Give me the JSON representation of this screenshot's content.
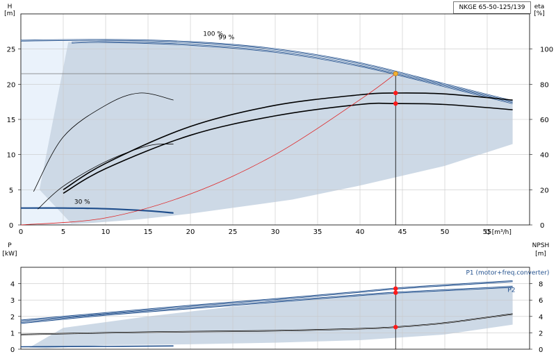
{
  "model": "NKGE 65-50-125/139",
  "chart_data": [
    {
      "type": "line",
      "panel": "upper",
      "xlabel": "Q [m³/h]",
      "ylabel_left": "H",
      "ylabel_left_unit": "[m]",
      "ylabel_right": "eta",
      "ylabel_right_unit": "[%]",
      "xlim": [
        0,
        60
      ],
      "ylim_left": [
        0,
        30
      ],
      "ylim_right": [
        0,
        120
      ],
      "x_ticks": [
        0,
        5,
        10,
        15,
        20,
        25,
        30,
        35,
        40,
        45,
        50,
        55
      ],
      "y_ticks_left": [
        0,
        5,
        10,
        15,
        20,
        25
      ],
      "y_ticks_right": [
        0,
        20,
        40,
        60,
        80,
        100
      ],
      "grid": true,
      "annotations": [
        "100 %",
        "99 %",
        "30 %"
      ],
      "operating_point": {
        "q": 44.2,
        "h": 21.5,
        "eta": 75,
        "eta_alt": 69
      },
      "series": [
        {
          "name": "100 %",
          "axis": "left",
          "color": "#1f4e8c",
          "x": [
            0,
            10,
            20,
            30,
            40,
            50,
            58
          ],
          "y": [
            26.2,
            26.3,
            26.0,
            25.0,
            23.0,
            20.0,
            17.6
          ]
        },
        {
          "name": "99 %",
          "axis": "left",
          "color": "#1f4e8c",
          "x": [
            6,
            10,
            20,
            30,
            40,
            50,
            58
          ],
          "y": [
            25.9,
            26.0,
            25.6,
            24.6,
            22.6,
            19.7,
            17.3
          ]
        },
        {
          "name": "30 %",
          "axis": "left",
          "color": "#1f4e8c",
          "x": [
            0,
            5,
            10,
            15,
            18
          ],
          "y": [
            2.4,
            2.4,
            2.3,
            2.0,
            1.7
          ]
        },
        {
          "axis": "right",
          "color": "#000000",
          "x": [
            5,
            10,
            20,
            30,
            40,
            44.2,
            50,
            58
          ],
          "y": [
            20,
            35,
            56,
            68,
            74,
            75,
            74.5,
            71
          ]
        },
        {
          "axis": "right",
          "color": "#000000",
          "x": [
            5,
            10,
            20,
            30,
            40,
            44.2,
            50,
            58
          ],
          "y": [
            18,
            32,
            51,
            62,
            68.5,
            69,
            68.5,
            65.5
          ]
        },
        {
          "axis": "right",
          "color": "#000000",
          "x": [
            2,
            5,
            10,
            15,
            18
          ],
          "y": [
            9,
            22,
            36,
            45,
            46
          ]
        },
        {
          "axis": "right",
          "color": "#000000",
          "x": [
            1.5,
            5,
            10,
            14,
            18
          ],
          "y": [
            19,
            50,
            68,
            75,
            71
          ]
        },
        {
          "axis": "left",
          "color": "#e02020",
          "x": [
            0,
            10,
            20,
            30,
            40,
            44.2
          ],
          "y": [
            0,
            1.0,
            4.4,
            10.0,
            17.8,
            21.5
          ]
        }
      ]
    },
    {
      "type": "line",
      "panel": "lower",
      "ylabel_left": "P",
      "ylabel_left_unit": "[kW]",
      "ylabel_right": "NPSH",
      "ylabel_right_unit": "[m]",
      "xlim": [
        0,
        60
      ],
      "ylim_left": [
        0,
        5
      ],
      "ylim_right": [
        0,
        10
      ],
      "y_ticks_left": [
        0,
        1,
        2,
        3,
        4
      ],
      "y_ticks_right": [
        0,
        2,
        4,
        6,
        8
      ],
      "grid": true,
      "series": [
        {
          "name": "P1 (motor+freq.converter)",
          "axis": "left",
          "color": "#1f4e8c",
          "x": [
            0,
            10,
            20,
            30,
            40,
            44.2,
            50,
            58
          ],
          "y": [
            1.75,
            2.2,
            2.65,
            3.05,
            3.5,
            3.7,
            3.9,
            4.15
          ]
        },
        {
          "name": "P2",
          "axis": "left",
          "color": "#1f4e8c",
          "x": [
            0,
            10,
            20,
            30,
            40,
            44.2,
            50,
            58
          ],
          "y": [
            1.6,
            2.1,
            2.5,
            2.9,
            3.3,
            3.45,
            3.6,
            3.8
          ]
        },
        {
          "axis": "right",
          "color": "#000000",
          "x": [
            0,
            10,
            20,
            30,
            40,
            44.2,
            50,
            58
          ],
          "y": [
            1.8,
            2.0,
            2.15,
            2.25,
            2.5,
            2.7,
            3.2,
            4.3
          ]
        },
        {
          "axis": "left",
          "color": "#1f4e8c",
          "x": [
            0,
            10,
            18
          ],
          "y": [
            0.15,
            0.17,
            0.2
          ]
        }
      ],
      "markers": {
        "q": 44.2,
        "values_left": [
          3.7,
          3.45
        ],
        "values_right": [
          2.7
        ]
      }
    }
  ]
}
